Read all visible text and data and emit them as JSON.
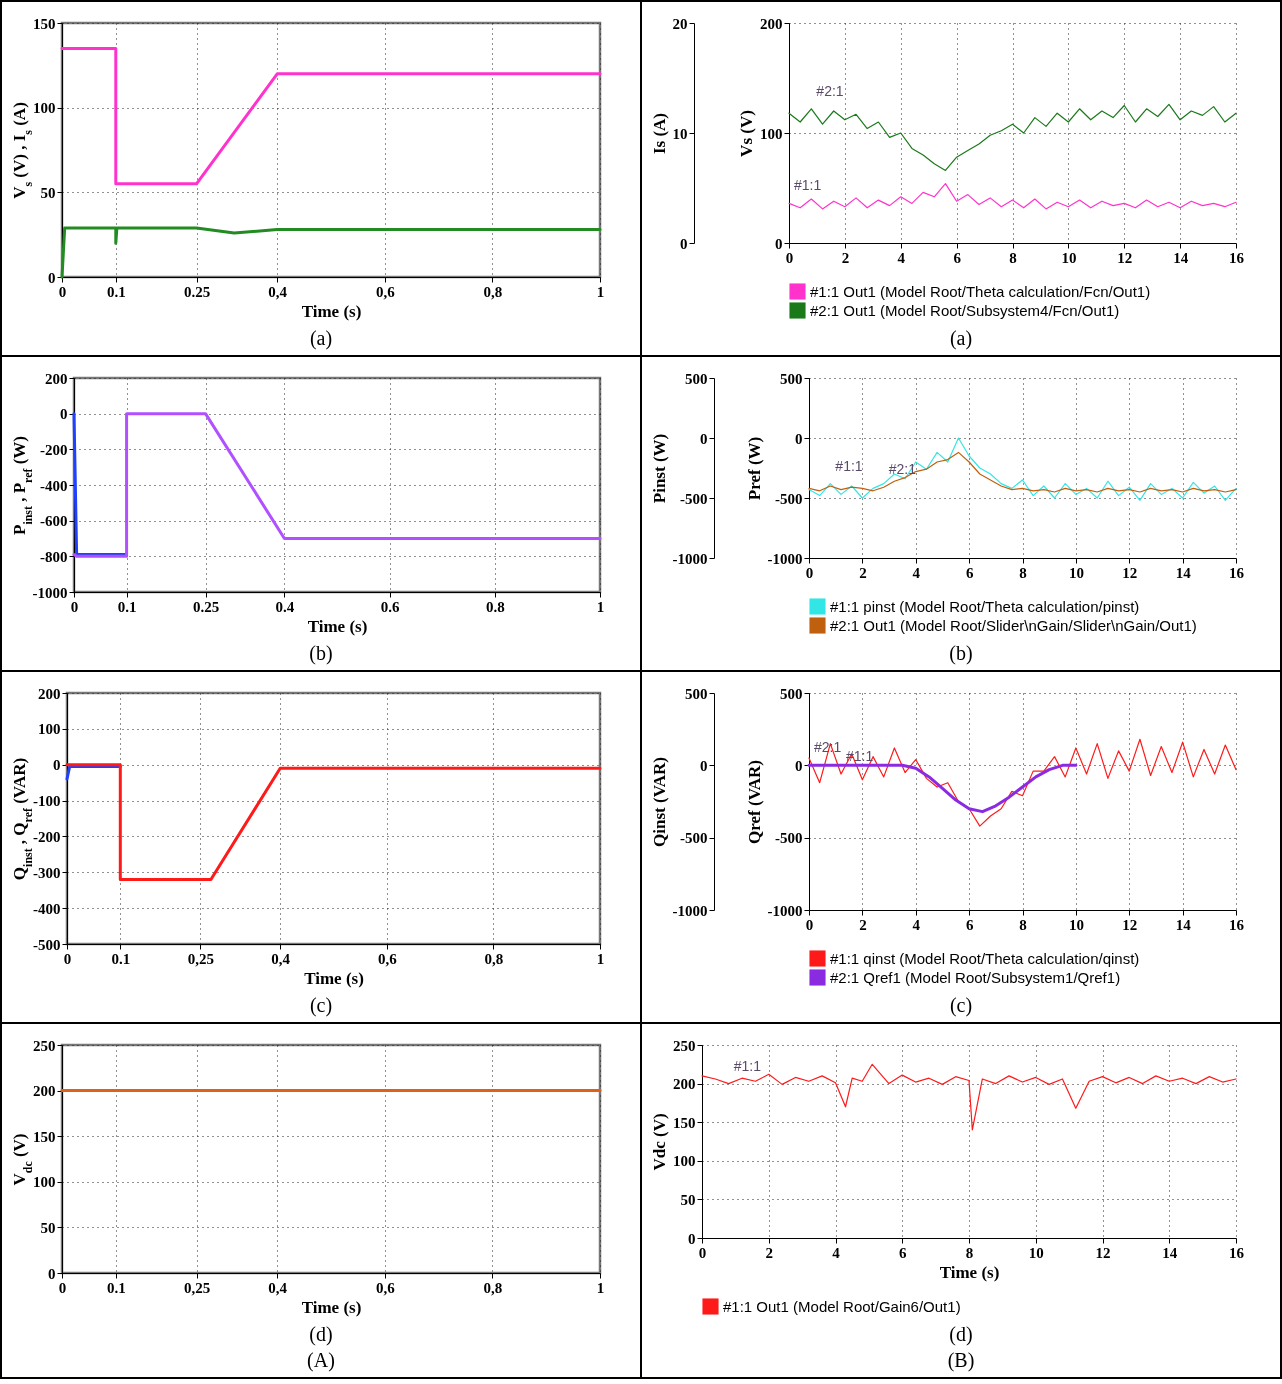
{
  "chart_data": [
    {
      "type": "line",
      "xlabel": "Time (s)",
      "ylabel": "V$_{s}$ (V) , I$_{s}$ (A)",
      "xlim": [
        0,
        1
      ],
      "xticks": [
        0,
        0.1,
        0.25,
        {
          "value": 0.4,
          "label": "0,4"
        },
        {
          "value": 0.6,
          "label": "0,6"
        },
        {
          "value": 0.8,
          "label": "0,8"
        },
        1
      ],
      "ylim": [
        0,
        150
      ],
      "yticks": [
        0,
        50,
        100,
        150
      ],
      "grid": true,
      "annotations": [
        "(a)"
      ],
      "series": [
        {
          "color": "#ff33cc",
          "x": [
            0,
            0.1,
            0.1,
            0.25,
            0.4,
            1
          ],
          "values": [
            135,
            135,
            55,
            55,
            120,
            120
          ]
        },
        {
          "color": "#228b22",
          "x": [
            0,
            0.005,
            0.1,
            0.1,
            0.102,
            0.25,
            0.32,
            0.4,
            1
          ],
          "values": [
            0,
            29,
            29,
            20,
            29,
            29,
            26,
            28,
            28
          ]
        }
      ]
    },
    {
      "type": "line",
      "ylabel": "Is (A)",
      "y2label": "Vs (V)",
      "xlim": [
        0,
        16
      ],
      "xticks": [
        0,
        2,
        4,
        6,
        8,
        10,
        12,
        14,
        16
      ],
      "ylim": [
        0,
        20
      ],
      "yticks": [
        0,
        10,
        20
      ],
      "y2lim": [
        0,
        200
      ],
      "y2ticks": [
        0,
        100,
        200
      ],
      "grid": true,
      "legend": "bottom",
      "annotations": [
        {
          "text": "#2:1",
          "x": 0.8,
          "y": 12.2
        },
        {
          "text": "#1:1",
          "x": 0,
          "y": 3.6
        },
        "(a)"
      ],
      "x": [
        0,
        0.4,
        0.8,
        1.2,
        1.6,
        2,
        2.4,
        2.8,
        3.2,
        3.6,
        4,
        4.4,
        4.8,
        5.2,
        5.6,
        6,
        6.4,
        6.8,
        7.2,
        7.6,
        8,
        8.4,
        8.8,
        9.2,
        9.6,
        10,
        10.4,
        10.8,
        11.2,
        11.6,
        12,
        12.4,
        12.8,
        13.2,
        13.6,
        14,
        14.4,
        14.8,
        15.2,
        15.6,
        16
      ],
      "series": [
        {
          "name": "#1:1 Out1 (Model Root/Theta calculation/Fcn/Out1)",
          "color": "#ff33cc",
          "values": [
            3.6,
            3.2,
            4,
            3.1,
            3.8,
            3.3,
            4.1,
            3.2,
            3.9,
            3.4,
            4.2,
            3.6,
            4.6,
            4.2,
            5.4,
            3.8,
            4.4,
            3.5,
            4.1,
            3.3,
            3.9,
            3.2,
            4,
            3.1,
            3.7,
            3.3,
            3.9,
            3.2,
            3.8,
            3.4,
            3.6,
            3.2,
            3.9,
            3.3,
            3.7,
            3.2,
            3.8,
            3.4,
            3.6,
            3.3,
            3.7
          ]
        },
        {
          "name": "#2:1 Out1 (Model Root/Subsystem4/Fcn/Out1)",
          "color": "#1a7a1a",
          "axis": "y2",
          "values": [
            118,
            110,
            122,
            108,
            120,
            112,
            117,
            104,
            110,
            96,
            100,
            86,
            80,
            72,
            66,
            78,
            84,
            90,
            98,
            102,
            108,
            100,
            114,
            106,
            118,
            110,
            122,
            112,
            120,
            114,
            125,
            110,
            122,
            115,
            126,
            112,
            120,
            116,
            124,
            110,
            118
          ]
        }
      ]
    },
    {
      "type": "line",
      "xlabel": "Time (s)",
      "ylabel": "P$_{inst}$ , P$_{ref}$ (W)",
      "xlim": [
        0,
        1
      ],
      "xticks": [
        0,
        0.1,
        0.25,
        0.4,
        0.6,
        0.8,
        1
      ],
      "ylim": [
        -1000,
        200
      ],
      "yticks": [
        -1000,
        -800,
        -600,
        -400,
        -200,
        0,
        200
      ],
      "grid": true,
      "annotations": [
        "(b)"
      ],
      "series": [
        {
          "color": "#2040ff",
          "x": [
            0,
            0.005,
            0.1
          ],
          "values": [
            0,
            -790,
            -790
          ]
        },
        {
          "color": "#b050ff",
          "x": [
            0,
            0.005,
            0.1,
            0.1,
            0.25,
            0.4,
            1
          ],
          "values": [
            -790,
            -800,
            -800,
            0,
            0,
            -700,
            -700
          ]
        }
      ]
    },
    {
      "type": "line",
      "ylabel": "Pinst (W)",
      "y2label": "Pref (W)",
      "xlim": [
        0,
        16
      ],
      "xticks": [
        0,
        2,
        4,
        6,
        8,
        10,
        12,
        14,
        16
      ],
      "ylim": [
        -1000,
        500
      ],
      "yticks": [
        -1000,
        -500,
        0,
        500
      ],
      "y2lim": [
        -1000,
        500
      ],
      "y2ticks": [
        -1000,
        -500,
        0,
        500
      ],
      "grid": true,
      "legend": "bottom",
      "annotations": [
        {
          "text": "#1:1",
          "x": 0.8,
          "y": -380
        },
        {
          "text": "#2:1",
          "x": 2.8,
          "y": -410
        },
        "(b)"
      ],
      "x": [
        0,
        0.4,
        0.8,
        1.2,
        1.6,
        2,
        2.4,
        2.8,
        3.2,
        3.6,
        4,
        4.4,
        4.8,
        5.2,
        5.6,
        6,
        6.4,
        6.8,
        7.2,
        7.6,
        8,
        8.4,
        8.8,
        9.2,
        9.6,
        10,
        10.4,
        10.8,
        11.2,
        11.6,
        12,
        12.4,
        12.8,
        13.2,
        13.6,
        14,
        14.4,
        14.8,
        15.2,
        15.6,
        16
      ],
      "series": [
        {
          "name": "#1:1 pinst (Model Root/Theta calculation/pinst)",
          "color": "#33e6e6",
          "values": [
            -430,
            -480,
            -380,
            -470,
            -400,
            -500,
            -420,
            -380,
            -300,
            -340,
            -200,
            -260,
            -120,
            -200,
            0,
            -150,
            -250,
            -300,
            -380,
            -420,
            -350,
            -480,
            -400,
            -500,
            -380,
            -470,
            -420,
            -500,
            -360,
            -480,
            -410,
            -520,
            -380,
            -470,
            -420,
            -500,
            -370,
            -460,
            -400,
            -520,
            -420
          ]
        },
        {
          "name": "#2:1 Out1 (Model Root/Slider\\nGain/Slider\\nGain/Out1)",
          "color": "#c0600f",
          "axis": "y2",
          "values": [
            -420,
            -440,
            -400,
            -430,
            -410,
            -420,
            -440,
            -410,
            -360,
            -330,
            -280,
            -260,
            -200,
            -180,
            -120,
            -200,
            -300,
            -350,
            -400,
            -430,
            -420,
            -440,
            -430,
            -450,
            -420,
            -440,
            -430,
            -450,
            -420,
            -440,
            -430,
            -450,
            -420,
            -440,
            -430,
            -450,
            -420,
            -440,
            -430,
            -450,
            -430
          ]
        }
      ]
    },
    {
      "type": "line",
      "xlabel": "Time (s)",
      "ylabel": "Q$_{inst}$ , Q$_{ref}$ (VAR)",
      "xlim": [
        0,
        1
      ],
      "xticks": [
        0,
        0.1,
        {
          "value": 0.25,
          "label": "0,25"
        },
        {
          "value": 0.4,
          "label": "0,4"
        },
        {
          "value": 0.6,
          "label": "0,6"
        },
        {
          "value": 0.8,
          "label": "0,8"
        },
        1
      ],
      "ylim": [
        -500,
        200
      ],
      "yticks": [
        -500,
        -400,
        -300,
        -200,
        -100,
        0,
        100,
        200
      ],
      "grid": true,
      "annotations": [
        "(c)"
      ],
      "series": [
        {
          "color": "#2040ff",
          "x": [
            0,
            0.005,
            0.1
          ],
          "values": [
            -40,
            -5,
            -5
          ]
        },
        {
          "color": "#ff1a1a",
          "x": [
            0,
            0.1,
            0.1,
            0.27,
            0.4,
            1
          ],
          "values": [
            0,
            0,
            -320,
            -320,
            -10,
            -10
          ]
        }
      ]
    },
    {
      "type": "line",
      "ylabel": "Qinst (VAR)",
      "y2label": "Qref (VAR)",
      "xlim": [
        0,
        16
      ],
      "xticks": [
        0,
        2,
        4,
        6,
        8,
        10,
        12,
        14,
        16
      ],
      "ylim": [
        -1000,
        500
      ],
      "yticks": [
        -1000,
        -500,
        0,
        500
      ],
      "y2lim": [
        -1000,
        500
      ],
      "y2ticks": [
        -1000,
        -500,
        0,
        500
      ],
      "grid": true,
      "legend": "bottom",
      "annotations": [
        {
          "text": "#2:1",
          "x": 0,
          "y": 0
        },
        {
          "text": "#1:1",
          "x": 1.2,
          "y": -60
        },
        "(c)"
      ],
      "x": [
        0,
        0.4,
        0.8,
        1.2,
        1.6,
        2,
        2.4,
        2.8,
        3.2,
        3.6,
        4,
        4.4,
        4.8,
        5.2,
        5.6,
        6,
        6.4,
        6.8,
        7.2,
        7.6,
        8,
        8.4,
        8.8,
        9.2,
        9.6,
        10,
        10.4,
        10.8,
        11.2,
        11.6,
        12,
        12.4,
        12.8,
        13.2,
        13.6,
        14,
        14.4,
        14.8,
        15.2,
        15.6,
        16
      ],
      "series": [
        {
          "name": "#1:1 qinst (Model Root/Theta calculation/qinst)",
          "color": "#ff1a1a",
          "values": [
            50,
            -120,
            150,
            -60,
            80,
            -100,
            60,
            -80,
            120,
            -50,
            40,
            -90,
            -150,
            -120,
            -250,
            -300,
            -420,
            -350,
            -300,
            -180,
            -210,
            -40,
            -40,
            60,
            -80,
            120,
            -60,
            150,
            -90,
            100,
            -40,
            180,
            -70,
            130,
            -50,
            160,
            -80,
            110,
            -60,
            140,
            -30
          ]
        },
        {
          "name": "#2:1 Qref1 (Model Root/Subsystem1/Qref1)",
          "color": "#8a2be2",
          "axis": "y2",
          "x": [
            0,
            1,
            2,
            3,
            3.5,
            4,
            4.5,
            5,
            5.5,
            6,
            6.5,
            7,
            7.5,
            8,
            8.5,
            9,
            9.5,
            10
          ],
          "values": [
            0,
            0,
            0,
            0,
            0,
            -20,
            -80,
            -160,
            -240,
            -300,
            -320,
            -280,
            -220,
            -150,
            -80,
            -30,
            0,
            0
          ]
        }
      ]
    },
    {
      "type": "line",
      "xlabel": "Time (s)",
      "ylabel": "V$_{dc}$ (V)",
      "xlim": [
        0,
        1
      ],
      "xticks": [
        0,
        0.1,
        {
          "value": 0.25,
          "label": "0,25"
        },
        {
          "value": 0.4,
          "label": "0,4"
        },
        {
          "value": 0.6,
          "label": "0,6"
        },
        {
          "value": 0.8,
          "label": "0,8"
        },
        1
      ],
      "ylim": [
        0,
        250
      ],
      "yticks": [
        0,
        50,
        100,
        150,
        200,
        250
      ],
      "grid": true,
      "annotations": [
        "(d)",
        "(A)"
      ],
      "series": [
        {
          "color": "#e0601a",
          "x": [
            0,
            1
          ],
          "values": [
            200,
            200
          ]
        }
      ]
    },
    {
      "type": "line",
      "xlabel": "Time (s)",
      "ylabel": "Vdc (V)",
      "xlim": [
        0,
        16
      ],
      "xticks": [
        0,
        2,
        4,
        6,
        8,
        10,
        12,
        14,
        16
      ],
      "ylim": [
        0,
        250
      ],
      "yticks": [
        0,
        50,
        100,
        150,
        200,
        250
      ],
      "grid": true,
      "legend": "bottom",
      "annotations": [
        {
          "text": "#1:1",
          "x": 0.8,
          "y": 200
        },
        "(d)",
        "(B)"
      ],
      "series": [
        {
          "name": "#1:1 Out1 (Model Root/Gain6/Out1)",
          "color": "#ff1a1a",
          "x": [
            0,
            0.4,
            0.8,
            1.2,
            1.6,
            2,
            2.4,
            2.8,
            3.2,
            3.6,
            4,
            4.3,
            4.5,
            4.8,
            5.1,
            5.6,
            6,
            6.4,
            6.8,
            7.2,
            7.6,
            8,
            8.1,
            8.4,
            8.8,
            9.2,
            9.6,
            10,
            10.4,
            10.8,
            11.2,
            11.6,
            12,
            12.4,
            12.8,
            13.2,
            13.6,
            14,
            14.4,
            14.8,
            15.2,
            15.6,
            16
          ],
          "values": [
            210,
            206,
            200,
            207,
            203,
            212,
            199,
            208,
            203,
            210,
            201,
            170,
            207,
            203,
            225,
            200,
            211,
            202,
            207,
            199,
            209,
            204,
            140,
            206,
            200,
            210,
            202,
            208,
            199,
            206,
            168,
            203,
            209,
            201,
            208,
            200,
            210,
            203,
            207,
            200,
            209,
            202,
            206
          ]
        }
      ]
    }
  ]
}
